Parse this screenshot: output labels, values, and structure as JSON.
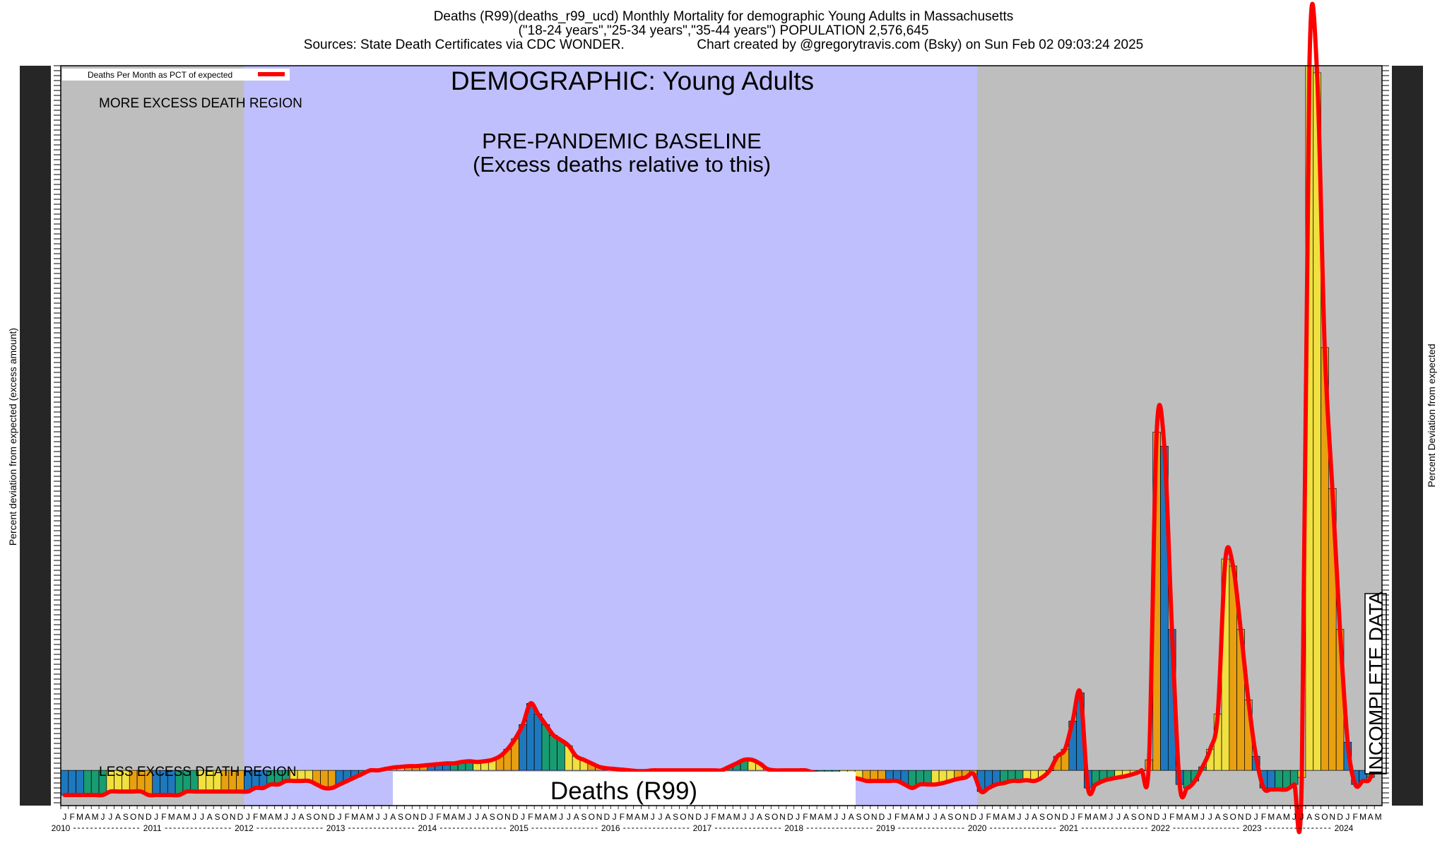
{
  "header": {
    "title_line1": "Deaths (R99)(deaths_r99_ucd) Monthly Mortality for demographic Young Adults in Massachusetts",
    "title_line2": "(\"18-24 years\",\"25-34 years\",\"35-44 years\") POPULATION 2,576,645",
    "title_line3_left": "Sources: State Death Certificates via CDC WONDER.",
    "title_line3_right": "Chart created by @gregorytravis.com (Bsky) on Sun Feb 02 09:03:24 2025"
  },
  "chart_data": {
    "type": "bar",
    "ylabel_left": "Percent deviation from expected (excess amount)",
    "ylabel_right": "Percent Deviation from expected",
    "legend": {
      "label": "Deaths Per Month as PCT of expected",
      "placement": "top-left",
      "color": "#ff0000"
    },
    "annotations": {
      "demographic": "DEMOGRAPHIC: Young Adults",
      "baseline_line1": "PRE-PANDEMIC BASELINE",
      "baseline_line2": "(Excess deaths relative to this)",
      "more_region": "MORE EXCESS DEATH REGION",
      "less_region": "LESS EXCESS DEATH REGION",
      "incomplete": "INCOMPLETE DATA",
      "series_box": "Deaths (R99)"
    },
    "baseline_period": {
      "start": "2012-01",
      "end": "2019-12"
    },
    "x_start": "2010-01",
    "month_letters": [
      "J",
      "F",
      "M",
      "A",
      "M",
      "J",
      "J",
      "A",
      "S",
      "O",
      "N",
      "D"
    ],
    "years": [
      "2010",
      "2011",
      "2012",
      "2013",
      "2014",
      "2015",
      "2016",
      "2017",
      "2018",
      "2019",
      "2020",
      "2021",
      "2022",
      "2023",
      "2024"
    ],
    "ylim": [
      -5,
      100
    ],
    "value_units": "approximate percent of peak excess deviation",
    "values": [
      -3.5,
      -3.5,
      -3.5,
      -3.5,
      -3.5,
      -3.5,
      -3,
      -3,
      -3,
      -3,
      -3,
      -3.5,
      -3.5,
      -3.5,
      -3.5,
      -3.5,
      -3,
      -3,
      -3,
      -3,
      -3,
      -3,
      -3,
      -3,
      -3,
      -2.5,
      -2.5,
      -2,
      -2,
      -1.5,
      -1.5,
      -1.5,
      -1.5,
      -2,
      -2.5,
      -2.5,
      -2,
      -1.5,
      -1,
      -0.5,
      0,
      0,
      0.2,
      0.4,
      0.5,
      0.6,
      0.6,
      0.7,
      0.8,
      0.9,
      1,
      1,
      1.2,
      1.3,
      1.2,
      1.3,
      1.5,
      2,
      3,
      4.5,
      6.5,
      9.5,
      8,
      6.5,
      5,
      4.3,
      3.5,
      2,
      1.5,
      1,
      0.5,
      0.3,
      0.2,
      0.1,
      0,
      -0.1,
      -0.1,
      0,
      0,
      0,
      0,
      0,
      0,
      0,
      0,
      0,
      0,
      0.5,
      1,
      1.5,
      1.5,
      1,
      0.2,
      0,
      0,
      0,
      0,
      0,
      -0.3,
      -0.5,
      -0.8,
      -1,
      -1,
      -1,
      -1.2,
      -1.5,
      -1.5,
      -1.5,
      -1.5,
      -1.5,
      -2,
      -2.5,
      -2,
      -2,
      -2,
      -1.8,
      -1.5,
      -1.2,
      -1,
      -0.5,
      -3,
      -2.5,
      -2,
      -1.8,
      -1.5,
      -1.5,
      -1.4,
      -1.5,
      -1,
      0,
      2,
      3,
      7,
      11,
      -2.5,
      -2,
      -1.5,
      -1.2,
      -1,
      -0.8,
      -0.5,
      0,
      1.5,
      48,
      46,
      20,
      -2,
      -2.5,
      -1.5,
      0.5,
      3,
      8,
      30,
      29,
      20,
      10,
      2,
      -2.5,
      -2.7,
      -2.7,
      -2.7,
      -2,
      -1,
      100,
      99,
      60,
      40,
      20,
      4,
      -2,
      -1.5,
      -1,
      4
    ]
  }
}
